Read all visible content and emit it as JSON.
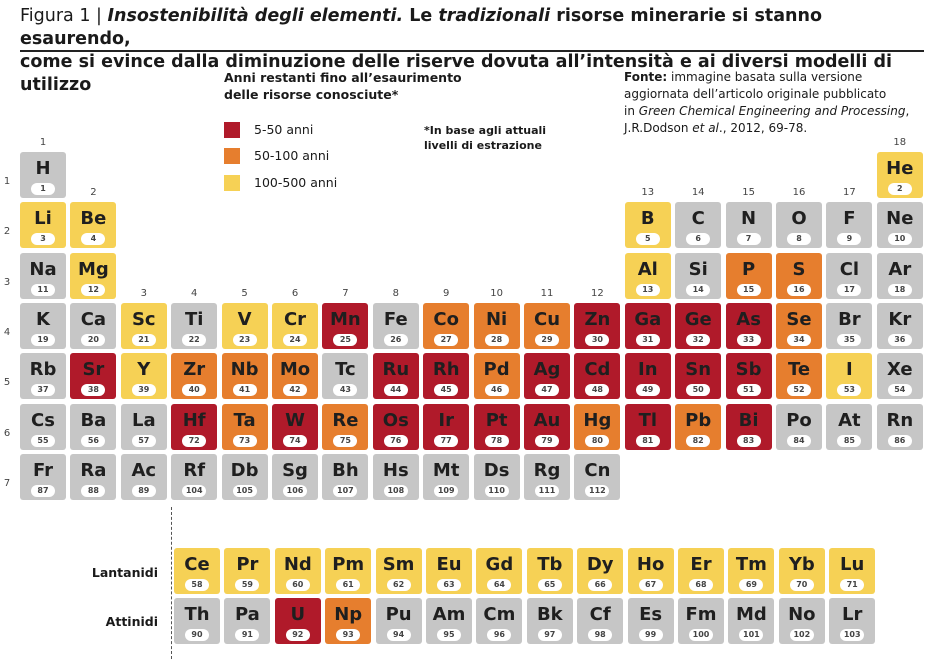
{
  "title": {
    "label": "Figura 1 | ",
    "part1": "Insostenibilità degli elementi.",
    "part2": " Le ",
    "part3": "tradizionali",
    "part4": " risorse minerarie si stanno esaurendo,",
    "line2": "come si evince dalla diminuzione delle riserve dovuta all’intensità e ai diversi modelli di utilizzo"
  },
  "legend": {
    "title_line1": "Anni restanti fino all’esaurimento",
    "title_line2": "delle risorse conosciute*",
    "items": [
      {
        "label": "5-50 anni",
        "color": "#b01a2a"
      },
      {
        "label": "50-100 anni",
        "color": "#e67e2e"
      },
      {
        "label": "100-500 anni",
        "color": "#f6d155"
      }
    ],
    "footnote_line1": "*In base agli attuali",
    "footnote_line2": "livelli di estrazione"
  },
  "source": {
    "label": "Fonte:",
    "text1": " immagine basata sulla versione",
    "line2": "aggiornata dell’articolo originale pubblicato",
    "line3_a": "in ",
    "line3_b": "Green Chemical Engineering and Processing",
    "line3_c": ",",
    "line4_a": "J.R.Dodson ",
    "line4_b": "et al",
    "line4_c": "., 2012, 69-78."
  },
  "colors": {
    "red": "#b01a2a",
    "orange": "#e67e2e",
    "yellow": "#f6d155",
    "gray": "#c6c6c6"
  },
  "groups": [
    "1",
    "2",
    "3",
    "4",
    "5",
    "6",
    "7",
    "8",
    "9",
    "10",
    "11",
    "12",
    "13",
    "14",
    "15",
    "16",
    "17",
    "18"
  ],
  "periods": [
    "1",
    "2",
    "3",
    "4",
    "5",
    "6",
    "7"
  ],
  "series_labels": {
    "lanthanides": "Lantanidi",
    "actinides": "Attinidi"
  },
  "elements": [
    {
      "s": "H",
      "n": "1",
      "p": 1,
      "g": 1,
      "c": "gray"
    },
    {
      "s": "He",
      "n": "2",
      "p": 1,
      "g": 18,
      "c": "yellow"
    },
    {
      "s": "Li",
      "n": "3",
      "p": 2,
      "g": 1,
      "c": "yellow"
    },
    {
      "s": "Be",
      "n": "4",
      "p": 2,
      "g": 2,
      "c": "yellow"
    },
    {
      "s": "B",
      "n": "5",
      "p": 2,
      "g": 13,
      "c": "yellow"
    },
    {
      "s": "C",
      "n": "6",
      "p": 2,
      "g": 14,
      "c": "gray"
    },
    {
      "s": "N",
      "n": "7",
      "p": 2,
      "g": 15,
      "c": "gray"
    },
    {
      "s": "O",
      "n": "8",
      "p": 2,
      "g": 16,
      "c": "gray"
    },
    {
      "s": "F",
      "n": "9",
      "p": 2,
      "g": 17,
      "c": "gray"
    },
    {
      "s": "Ne",
      "n": "10",
      "p": 2,
      "g": 18,
      "c": "gray"
    },
    {
      "s": "Na",
      "n": "11",
      "p": 3,
      "g": 1,
      "c": "gray"
    },
    {
      "s": "Mg",
      "n": "12",
      "p": 3,
      "g": 2,
      "c": "yellow"
    },
    {
      "s": "Al",
      "n": "13",
      "p": 3,
      "g": 13,
      "c": "yellow"
    },
    {
      "s": "Si",
      "n": "14",
      "p": 3,
      "g": 14,
      "c": "gray"
    },
    {
      "s": "P",
      "n": "15",
      "p": 3,
      "g": 15,
      "c": "orange"
    },
    {
      "s": "S",
      "n": "16",
      "p": 3,
      "g": 16,
      "c": "orange"
    },
    {
      "s": "Cl",
      "n": "17",
      "p": 3,
      "g": 17,
      "c": "gray"
    },
    {
      "s": "Ar",
      "n": "18",
      "p": 3,
      "g": 18,
      "c": "gray"
    },
    {
      "s": "K",
      "n": "19",
      "p": 4,
      "g": 1,
      "c": "gray"
    },
    {
      "s": "Ca",
      "n": "20",
      "p": 4,
      "g": 2,
      "c": "gray"
    },
    {
      "s": "Sc",
      "n": "21",
      "p": 4,
      "g": 3,
      "c": "yellow"
    },
    {
      "s": "Ti",
      "n": "22",
      "p": 4,
      "g": 4,
      "c": "gray"
    },
    {
      "s": "V",
      "n": "23",
      "p": 4,
      "g": 5,
      "c": "yellow"
    },
    {
      "s": "Cr",
      "n": "24",
      "p": 4,
      "g": 6,
      "c": "yellow"
    },
    {
      "s": "Mn",
      "n": "25",
      "p": 4,
      "g": 7,
      "c": "red"
    },
    {
      "s": "Fe",
      "n": "26",
      "p": 4,
      "g": 8,
      "c": "gray"
    },
    {
      "s": "Co",
      "n": "27",
      "p": 4,
      "g": 9,
      "c": "orange"
    },
    {
      "s": "Ni",
      "n": "28",
      "p": 4,
      "g": 10,
      "c": "orange"
    },
    {
      "s": "Cu",
      "n": "29",
      "p": 4,
      "g": 11,
      "c": "orange"
    },
    {
      "s": "Zn",
      "n": "30",
      "p": 4,
      "g": 12,
      "c": "red"
    },
    {
      "s": "Ga",
      "n": "31",
      "p": 4,
      "g": 13,
      "c": "red"
    },
    {
      "s": "Ge",
      "n": "32",
      "p": 4,
      "g": 14,
      "c": "red"
    },
    {
      "s": "As",
      "n": "33",
      "p": 4,
      "g": 15,
      "c": "red"
    },
    {
      "s": "Se",
      "n": "34",
      "p": 4,
      "g": 16,
      "c": "orange"
    },
    {
      "s": "Br",
      "n": "35",
      "p": 4,
      "g": 17,
      "c": "gray"
    },
    {
      "s": "Kr",
      "n": "36",
      "p": 4,
      "g": 18,
      "c": "gray"
    },
    {
      "s": "Rb",
      "n": "37",
      "p": 5,
      "g": 1,
      "c": "gray"
    },
    {
      "s": "Sr",
      "n": "38",
      "p": 5,
      "g": 2,
      "c": "red"
    },
    {
      "s": "Y",
      "n": "39",
      "p": 5,
      "g": 3,
      "c": "yellow"
    },
    {
      "s": "Zr",
      "n": "40",
      "p": 5,
      "g": 4,
      "c": "orange"
    },
    {
      "s": "Nb",
      "n": "41",
      "p": 5,
      "g": 5,
      "c": "orange"
    },
    {
      "s": "Mo",
      "n": "42",
      "p": 5,
      "g": 6,
      "c": "orange"
    },
    {
      "s": "Tc",
      "n": "43",
      "p": 5,
      "g": 7,
      "c": "gray"
    },
    {
      "s": "Ru",
      "n": "44",
      "p": 5,
      "g": 8,
      "c": "red"
    },
    {
      "s": "Rh",
      "n": "45",
      "p": 5,
      "g": 9,
      "c": "red"
    },
    {
      "s": "Pd",
      "n": "46",
      "p": 5,
      "g": 10,
      "c": "orange"
    },
    {
      "s": "Ag",
      "n": "47",
      "p": 5,
      "g": 11,
      "c": "red"
    },
    {
      "s": "Cd",
      "n": "48",
      "p": 5,
      "g": 12,
      "c": "red"
    },
    {
      "s": "In",
      "n": "49",
      "p": 5,
      "g": 13,
      "c": "red"
    },
    {
      "s": "Sn",
      "n": "50",
      "p": 5,
      "g": 14,
      "c": "red"
    },
    {
      "s": "Sb",
      "n": "51",
      "p": 5,
      "g": 15,
      "c": "red"
    },
    {
      "s": "Te",
      "n": "52",
      "p": 5,
      "g": 16,
      "c": "orange"
    },
    {
      "s": "I",
      "n": "53",
      "p": 5,
      "g": 17,
      "c": "yellow"
    },
    {
      "s": "Xe",
      "n": "54",
      "p": 5,
      "g": 18,
      "c": "gray"
    },
    {
      "s": "Cs",
      "n": "55",
      "p": 6,
      "g": 1,
      "c": "gray"
    },
    {
      "s": "Ba",
      "n": "56",
      "p": 6,
      "g": 2,
      "c": "gray"
    },
    {
      "s": "La",
      "n": "57",
      "p": 6,
      "g": 3,
      "c": "gray"
    },
    {
      "s": "Hf",
      "n": "72",
      "p": 6,
      "g": 4,
      "c": "red"
    },
    {
      "s": "Ta",
      "n": "73",
      "p": 6,
      "g": 5,
      "c": "orange"
    },
    {
      "s": "W",
      "n": "74",
      "p": 6,
      "g": 6,
      "c": "red"
    },
    {
      "s": "Re",
      "n": "75",
      "p": 6,
      "g": 7,
      "c": "orange"
    },
    {
      "s": "Os",
      "n": "76",
      "p": 6,
      "g": 8,
      "c": "red"
    },
    {
      "s": "Ir",
      "n": "77",
      "p": 6,
      "g": 9,
      "c": "red"
    },
    {
      "s": "Pt",
      "n": "78",
      "p": 6,
      "g": 10,
      "c": "red"
    },
    {
      "s": "Au",
      "n": "79",
      "p": 6,
      "g": 11,
      "c": "red"
    },
    {
      "s": "Hg",
      "n": "80",
      "p": 6,
      "g": 12,
      "c": "orange"
    },
    {
      "s": "Tl",
      "n": "81",
      "p": 6,
      "g": 13,
      "c": "red"
    },
    {
      "s": "Pb",
      "n": "82",
      "p": 6,
      "g": 14,
      "c": "orange"
    },
    {
      "s": "Bi",
      "n": "83",
      "p": 6,
      "g": 15,
      "c": "red"
    },
    {
      "s": "Po",
      "n": "84",
      "p": 6,
      "g": 16,
      "c": "gray"
    },
    {
      "s": "At",
      "n": "85",
      "p": 6,
      "g": 17,
      "c": "gray"
    },
    {
      "s": "Rn",
      "n": "86",
      "p": 6,
      "g": 18,
      "c": "gray"
    },
    {
      "s": "Fr",
      "n": "87",
      "p": 7,
      "g": 1,
      "c": "gray"
    },
    {
      "s": "Ra",
      "n": "88",
      "p": 7,
      "g": 2,
      "c": "gray"
    },
    {
      "s": "Ac",
      "n": "89",
      "p": 7,
      "g": 3,
      "c": "gray"
    },
    {
      "s": "Rf",
      "n": "104",
      "p": 7,
      "g": 4,
      "c": "gray"
    },
    {
      "s": "Db",
      "n": "105",
      "p": 7,
      "g": 5,
      "c": "gray"
    },
    {
      "s": "Sg",
      "n": "106",
      "p": 7,
      "g": 6,
      "c": "gray"
    },
    {
      "s": "Bh",
      "n": "107",
      "p": 7,
      "g": 7,
      "c": "gray"
    },
    {
      "s": "Hs",
      "n": "108",
      "p": 7,
      "g": 8,
      "c": "gray"
    },
    {
      "s": "Mt",
      "n": "109",
      "p": 7,
      "g": 9,
      "c": "gray"
    },
    {
      "s": "Ds",
      "n": "110",
      "p": 7,
      "g": 10,
      "c": "gray"
    },
    {
      "s": "Rg",
      "n": "111",
      "p": 7,
      "g": 11,
      "c": "gray"
    },
    {
      "s": "Cn",
      "n": "112",
      "p": 7,
      "g": 12,
      "c": "gray"
    }
  ],
  "lanthanides": [
    {
      "s": "Ce",
      "n": "58",
      "c": "yellow"
    },
    {
      "s": "Pr",
      "n": "59",
      "c": "yellow"
    },
    {
      "s": "Nd",
      "n": "60",
      "c": "yellow"
    },
    {
      "s": "Pm",
      "n": "61",
      "c": "yellow"
    },
    {
      "s": "Sm",
      "n": "62",
      "c": "yellow"
    },
    {
      "s": "Eu",
      "n": "63",
      "c": "yellow"
    },
    {
      "s": "Gd",
      "n": "64",
      "c": "yellow"
    },
    {
      "s": "Tb",
      "n": "65",
      "c": "yellow"
    },
    {
      "s": "Dy",
      "n": "66",
      "c": "yellow"
    },
    {
      "s": "Ho",
      "n": "67",
      "c": "yellow"
    },
    {
      "s": "Er",
      "n": "68",
      "c": "yellow"
    },
    {
      "s": "Tm",
      "n": "69",
      "c": "yellow"
    },
    {
      "s": "Yb",
      "n": "70",
      "c": "yellow"
    },
    {
      "s": "Lu",
      "n": "71",
      "c": "yellow"
    }
  ],
  "actinides": [
    {
      "s": "Th",
      "n": "90",
      "c": "gray"
    },
    {
      "s": "Pa",
      "n": "91",
      "c": "gray"
    },
    {
      "s": "U",
      "n": "92",
      "c": "red"
    },
    {
      "s": "Np",
      "n": "93",
      "c": "orange"
    },
    {
      "s": "Pu",
      "n": "94",
      "c": "gray"
    },
    {
      "s": "Am",
      "n": "95",
      "c": "gray"
    },
    {
      "s": "Cm",
      "n": "96",
      "c": "gray"
    },
    {
      "s": "Bk",
      "n": "97",
      "c": "gray"
    },
    {
      "s": "Cf",
      "n": "98",
      "c": "gray"
    },
    {
      "s": "Es",
      "n": "99",
      "c": "gray"
    },
    {
      "s": "Fm",
      "n": "100",
      "c": "gray"
    },
    {
      "s": "Md",
      "n": "101",
      "c": "gray"
    },
    {
      "s": "No",
      "n": "102",
      "c": "gray"
    },
    {
      "s": "Lr",
      "n": "103",
      "c": "gray"
    }
  ]
}
